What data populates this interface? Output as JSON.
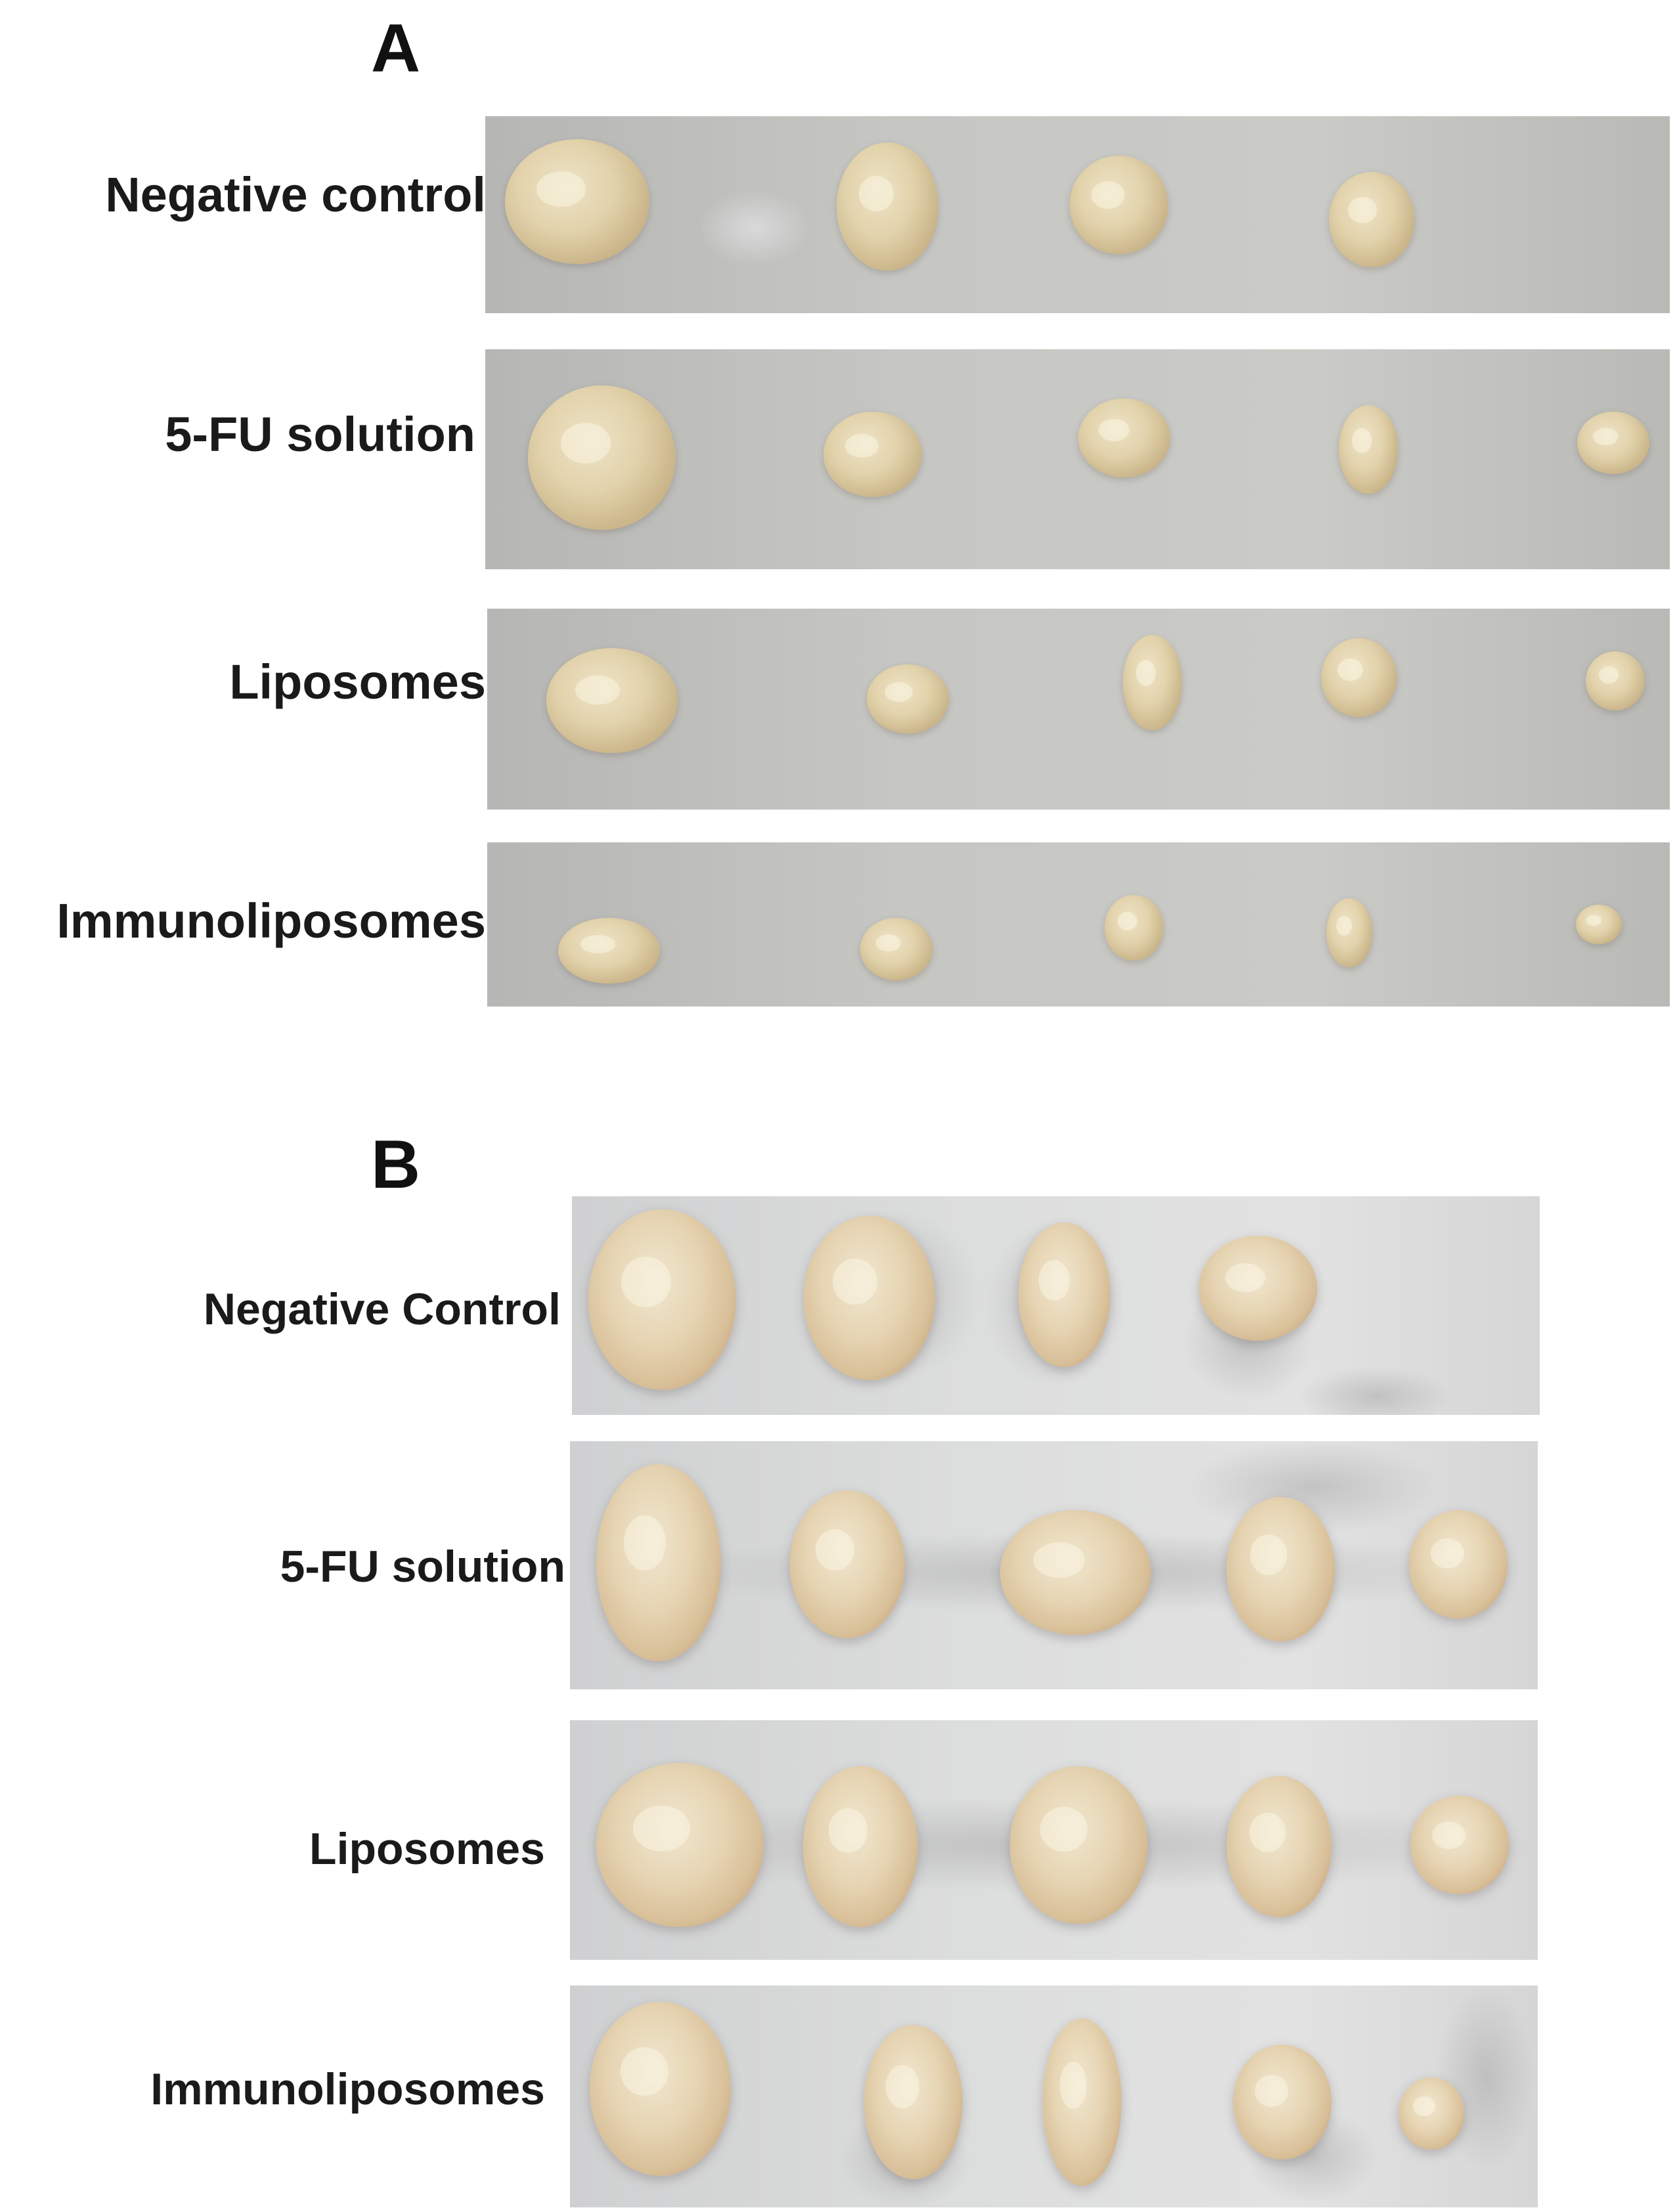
{
  "figure": {
    "panel_a": {
      "letter": "A",
      "rows": [
        {
          "label": "Negative control",
          "tumor_count": 4
        },
        {
          "label": "5-FU solution",
          "tumor_count": 5
        },
        {
          "label": "Liposomes",
          "tumor_count": 5
        },
        {
          "label": "Immunoliposomes",
          "tumor_count": 5
        }
      ]
    },
    "panel_b": {
      "letter": "B",
      "rows": [
        {
          "label": "Negative Control",
          "tumor_count": 4
        },
        {
          "label": "5-FU solution",
          "tumor_count": 5
        },
        {
          "label": "Liposomes",
          "tumor_count": 5
        },
        {
          "label": "Immunoliposomes",
          "tumor_count": 5
        }
      ]
    }
  }
}
